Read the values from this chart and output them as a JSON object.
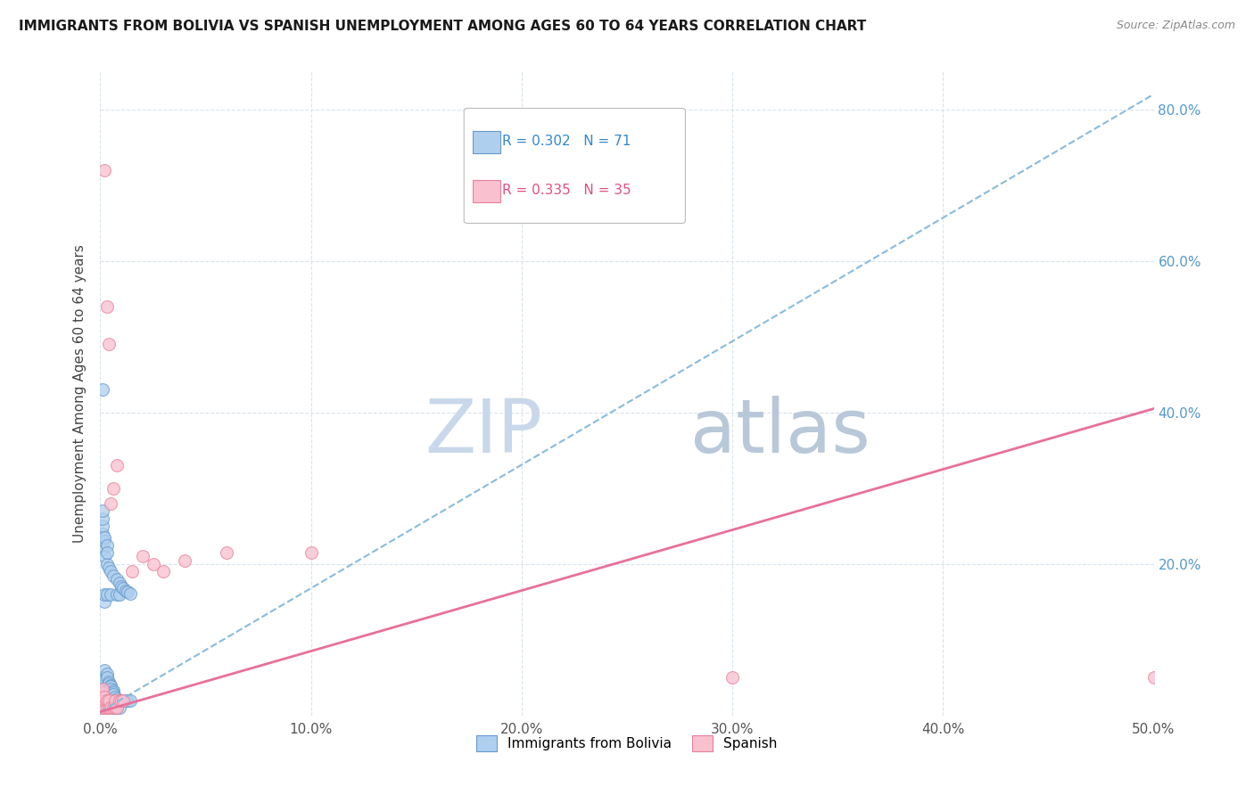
{
  "title": "IMMIGRANTS FROM BOLIVIA VS SPANISH UNEMPLOYMENT AMONG AGES 60 TO 64 YEARS CORRELATION CHART",
  "source": "Source: ZipAtlas.com",
  "ylabel": "Unemployment Among Ages 60 to 64 years",
  "xlim": [
    0.0,
    0.5
  ],
  "ylim": [
    0.0,
    0.85
  ],
  "xticks": [
    0.0,
    0.1,
    0.2,
    0.3,
    0.4,
    0.5
  ],
  "yticks": [
    0.0,
    0.2,
    0.4,
    0.6,
    0.8
  ],
  "xticklabels": [
    "0.0%",
    "10.0%",
    "20.0%",
    "30.0%",
    "40.0%",
    "50.0%"
  ],
  "yticklabels_right": [
    "",
    "20.0%",
    "40.0%",
    "60.0%",
    "80.0%"
  ],
  "bolivia_color": "#aecfee",
  "bolivia_edge": "#6699cc",
  "spanish_color": "#f9c0d0",
  "spanish_edge": "#e8809a",
  "legend_bolivia_R": "0.302",
  "legend_bolivia_N": "71",
  "legend_spanish_R": "0.335",
  "legend_spanish_N": "35",
  "bolivia_scatter_x": [
    0.001,
    0.001,
    0.001,
    0.001,
    0.001,
    0.001,
    0.001,
    0.001,
    0.001,
    0.002,
    0.002,
    0.002,
    0.002,
    0.002,
    0.003,
    0.003,
    0.003,
    0.004,
    0.004,
    0.005,
    0.005,
    0.005,
    0.006,
    0.006,
    0.007,
    0.007,
    0.008,
    0.008,
    0.009,
    0.009,
    0.01,
    0.011,
    0.012,
    0.013,
    0.014,
    0.001,
    0.002,
    0.003,
    0.004,
    0.005,
    0.006,
    0.001,
    0.001,
    0.002,
    0.002,
    0.003,
    0.003,
    0.001,
    0.001,
    0.008,
    0.009,
    0.01,
    0.011,
    0.012,
    0.013,
    0.014,
    0.001,
    0.002,
    0.003,
    0.003,
    0.004,
    0.004,
    0.005,
    0.005,
    0.005,
    0.006,
    0.006,
    0.006,
    0.007,
    0.008,
    0.009
  ],
  "bolivia_scatter_y": [
    0.01,
    0.015,
    0.02,
    0.025,
    0.03,
    0.035,
    0.04,
    0.045,
    0.05,
    0.01,
    0.02,
    0.03,
    0.15,
    0.16,
    0.01,
    0.02,
    0.16,
    0.01,
    0.02,
    0.01,
    0.02,
    0.16,
    0.01,
    0.02,
    0.01,
    0.02,
    0.01,
    0.16,
    0.01,
    0.16,
    0.02,
    0.02,
    0.02,
    0.02,
    0.02,
    0.22,
    0.21,
    0.2,
    0.195,
    0.19,
    0.185,
    0.24,
    0.25,
    0.23,
    0.235,
    0.225,
    0.215,
    0.26,
    0.27,
    0.18,
    0.175,
    0.17,
    0.168,
    0.165,
    0.163,
    0.161,
    0.43,
    0.06,
    0.055,
    0.05,
    0.045,
    0.042,
    0.04,
    0.038,
    0.035,
    0.033,
    0.03,
    0.028,
    0.025,
    0.022,
    0.02
  ],
  "spanish_scatter_x": [
    0.001,
    0.001,
    0.001,
    0.001,
    0.001,
    0.002,
    0.002,
    0.002,
    0.002,
    0.003,
    0.003,
    0.003,
    0.004,
    0.004,
    0.004,
    0.005,
    0.005,
    0.006,
    0.006,
    0.007,
    0.007,
    0.008,
    0.008,
    0.009,
    0.01,
    0.011,
    0.015,
    0.02,
    0.025,
    0.03,
    0.04,
    0.06,
    0.1,
    0.3,
    0.5
  ],
  "spanish_scatter_y": [
    0.01,
    0.02,
    0.025,
    0.03,
    0.035,
    0.01,
    0.02,
    0.025,
    0.72,
    0.01,
    0.02,
    0.54,
    0.01,
    0.02,
    0.49,
    0.01,
    0.28,
    0.01,
    0.3,
    0.01,
    0.02,
    0.01,
    0.33,
    0.02,
    0.02,
    0.02,
    0.19,
    0.21,
    0.2,
    0.19,
    0.205,
    0.215,
    0.215,
    0.05,
    0.05
  ],
  "bolivia_trendline_x": [
    0.0,
    0.5
  ],
  "bolivia_trendline_y": [
    0.005,
    0.82
  ],
  "spanish_trendline_x": [
    0.0,
    0.5
  ],
  "spanish_trendline_y": [
    0.005,
    0.405
  ],
  "watermark_zip": "ZIP",
  "watermark_atlas": "atlas",
  "watermark_color": "#c8d8ea",
  "background_color": "#ffffff",
  "grid_color": "#d8e4ec"
}
